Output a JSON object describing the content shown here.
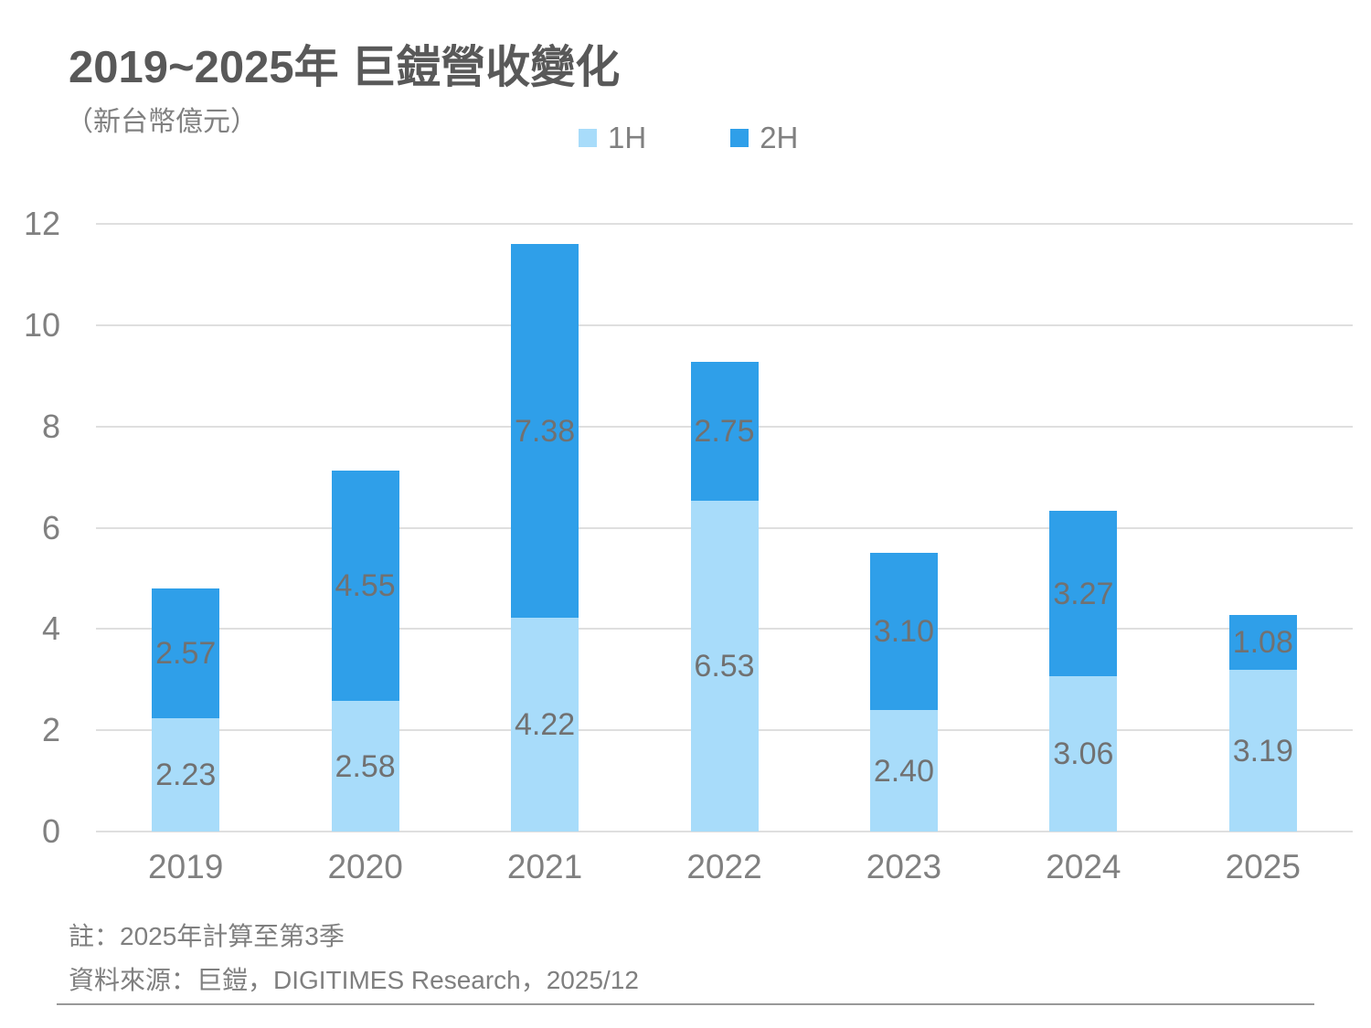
{
  "header": {
    "title": "2019~2025年 巨鎧營收變化",
    "subtitle": "（新台幣億元）"
  },
  "chart_data": {
    "type": "bar",
    "stacked": true,
    "title": "2019~2025年 巨鎧營收變化",
    "unit_label": "（新台幣億元）",
    "categories": [
      "2019",
      "2020",
      "2021",
      "2022",
      "2023",
      "2024",
      "2025"
    ],
    "series": [
      {
        "name": "1H",
        "color": "#A8DCFA",
        "values": [
          2.23,
          2.58,
          4.22,
          6.53,
          2.4,
          3.06,
          3.19
        ]
      },
      {
        "name": "2H",
        "color": "#2F9FE9",
        "values": [
          2.57,
          4.55,
          7.38,
          2.75,
          3.1,
          3.27,
          1.08
        ]
      }
    ],
    "yticks": [
      0,
      2,
      4,
      6,
      8,
      10,
      12
    ],
    "ylim": [
      0,
      12
    ],
    "xlabel": "",
    "ylabel": "",
    "grid": true,
    "legend_position": "top",
    "value_label_decimals": 2
  },
  "footer": {
    "note": "註：2025年計算至第3季",
    "source": "資料來源：巨鎧，DIGITIMES Research，2025/12"
  },
  "colors": {
    "title_text": "#595959",
    "axis_text": "#808080",
    "value_label_text": "#717171",
    "gridline": "#DFDFDF",
    "divider": "#999999",
    "background": "#FFFFFF"
  }
}
